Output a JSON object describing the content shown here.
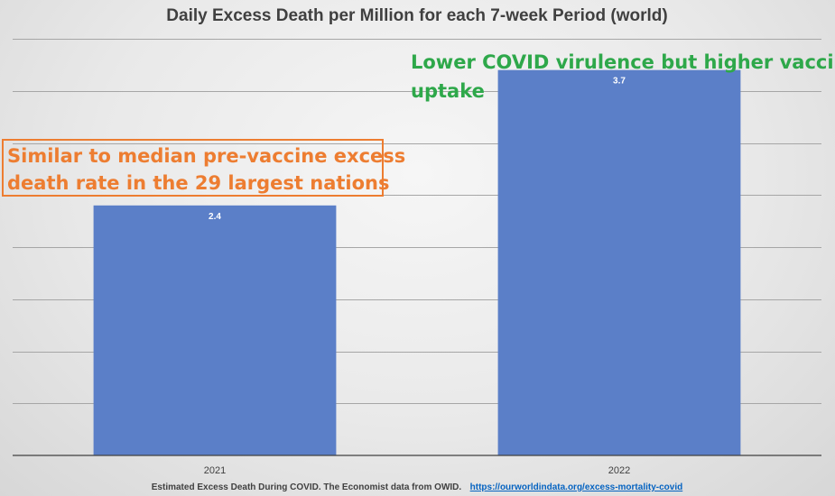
{
  "chart_data": {
    "type": "bar",
    "title": "Daily Excess Death per Million for each 7-week Period (world)",
    "categories": [
      "2021",
      "2022"
    ],
    "values": [
      2.4,
      3.7
    ],
    "data_labels": [
      "2.4",
      "3.7"
    ],
    "xlabel": "",
    "ylabel": "",
    "ylim": [
      0,
      4
    ],
    "grid": true,
    "y_tick_labels_shown": false,
    "bar_color": "#5b7fc8",
    "annotations": [
      {
        "lines": [
          "Similar to median pre-vaccine excess",
          "death rate in the 29 largest nations"
        ],
        "color": "#ed7d31",
        "boxed": true
      },
      {
        "lines": [
          "Lower COVID virulence but higher vaccine",
          "uptake"
        ],
        "color": "#2ea84a",
        "boxed": false
      }
    ],
    "footer": {
      "text": "Estimated Excess Death During COVID. The Economist data from OWID.",
      "link_text": "https://ourworldindata.org/excess-mortality-covid",
      "link_color": "#0563c1"
    }
  }
}
